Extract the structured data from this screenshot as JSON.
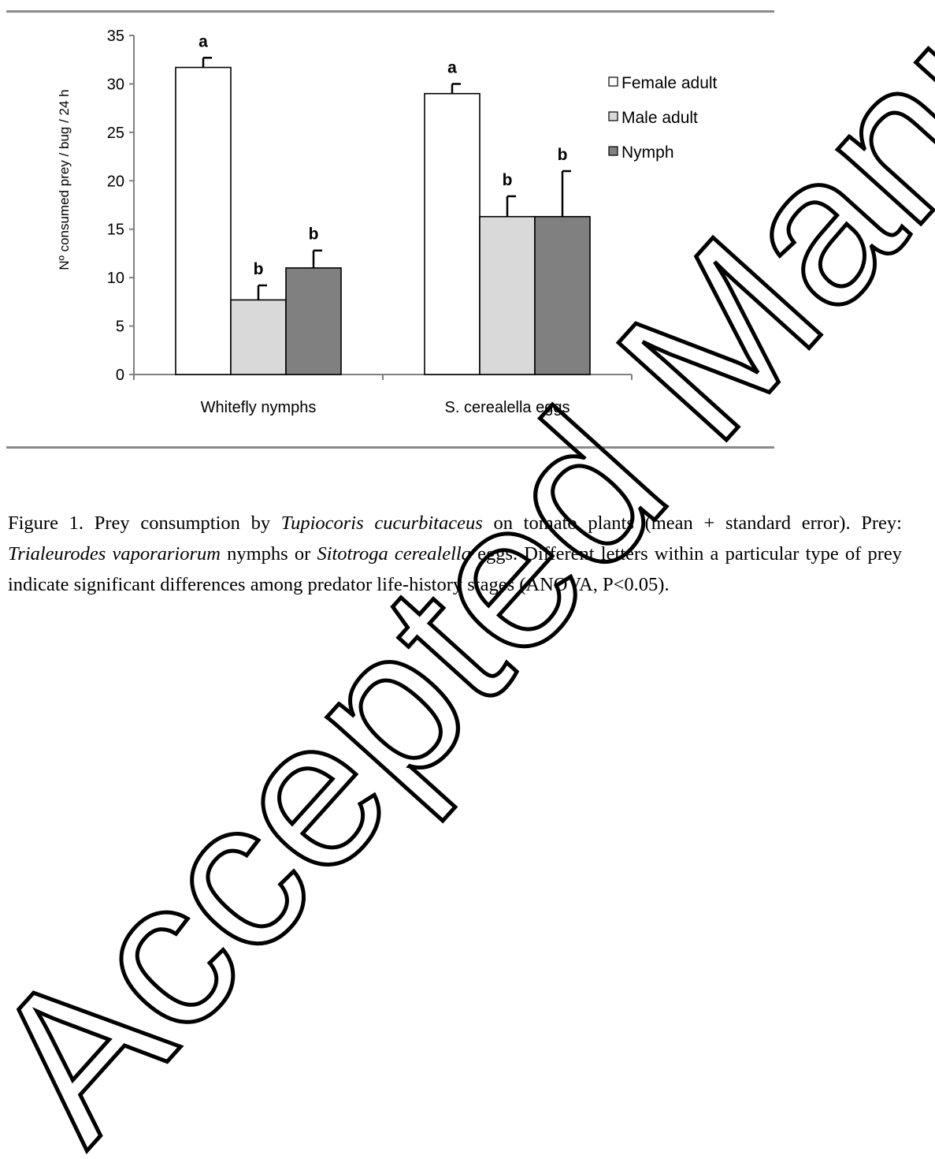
{
  "chart_data": {
    "type": "bar",
    "title": "",
    "xlabel": "",
    "ylabel": "Nº consumed prey / bug / 24 h",
    "ylim": [
      0,
      35
    ],
    "yticks": [
      "0",
      "5",
      "10",
      "15",
      "20",
      "25",
      "30",
      "35"
    ],
    "categories": [
      "Whitefly nymphs",
      "S. cerealella eggs"
    ],
    "series": [
      {
        "name": "Female adult",
        "values": [
          31.7,
          29.0
        ],
        "errors": [
          1.0,
          1.0
        ],
        "letters": [
          "a",
          "a"
        ],
        "color": "#ffffff"
      },
      {
        "name": "Male adult",
        "values": [
          7.7,
          16.3
        ],
        "errors": [
          1.5,
          2.1
        ],
        "letters": [
          "b",
          "b"
        ],
        "color": "#d9d9d9"
      },
      {
        "name": "Nymph",
        "values": [
          11.0,
          16.3
        ],
        "errors": [
          1.8,
          4.7
        ],
        "letters": [
          "b",
          "b"
        ],
        "color": "#808080"
      }
    ],
    "grid": false,
    "legend_position": "top-right"
  },
  "caption": {
    "label": "Figure 1. Prey consumption by ",
    "species1": "Tupiocoris cucurbitaceus",
    "text2": " on tomato plants (mean + standard error). Prey: ",
    "species2": "Trialeurodes vaporariorum",
    "text3": " nymphs or ",
    "species3": "Sitotroga cerealella",
    "text4": " eggs. Different letters within a particular type of prey indicate significant differences among predator life-history stages (ANOVA, P<0.05)."
  },
  "watermark": "Accepted Manuscript"
}
